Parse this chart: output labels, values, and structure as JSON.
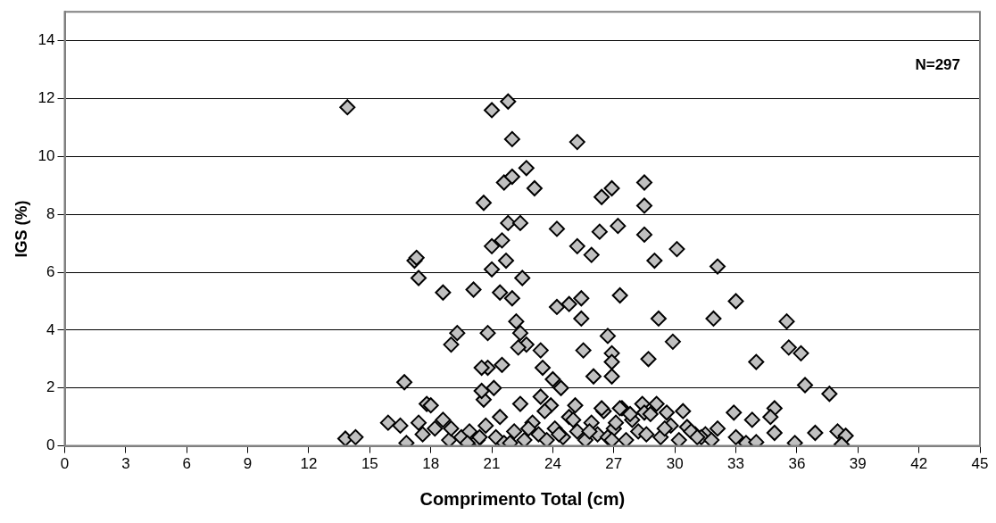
{
  "chart_data": {
    "type": "scatter",
    "xlabel": "Comprimento Total (cm)",
    "ylabel": "IGS (%)",
    "annotations": [
      "N=297"
    ],
    "marker": "diamond",
    "grid": "y",
    "xlim": [
      0,
      45
    ],
    "ylim": [
      0,
      15
    ],
    "xticks": [
      0,
      3,
      6,
      9,
      12,
      15,
      18,
      21,
      24,
      27,
      30,
      33,
      36,
      39,
      42,
      45
    ],
    "yticks": [
      0,
      2,
      4,
      6,
      8,
      10,
      12,
      14
    ],
    "series": [
      {
        "color": "#c0c0c0",
        "x": [
          13.9,
          21.0,
          21.8,
          22.0,
          25.2,
          20.6,
          21.6,
          22.0,
          22.7,
          23.1,
          26.4,
          26.9,
          28.5,
          28.5,
          17.2,
          17.4,
          18.6,
          20.1,
          21.0,
          21.4,
          22.0,
          22.5,
          21.7,
          21.0,
          21.5,
          21.8,
          22.4,
          24.2,
          25.2,
          25.9,
          26.3,
          27.2,
          28.5,
          29.0,
          30.1,
          24.2,
          24.8,
          25.4,
          25.4,
          27.3,
          29.2,
          19.3,
          19.0,
          20.8,
          22.2,
          22.4,
          22.7,
          22.3,
          23.4,
          25.5,
          26.7,
          26.9,
          26.9,
          28.7,
          29.9,
          20.8,
          21.5,
          23.5,
          32.1,
          33.0,
          31.9,
          35.5,
          35.6,
          36.2,
          34.0,
          17.3,
          16.7,
          15.9,
          16.5,
          13.8,
          14.3,
          17.8,
          17.4,
          18.0,
          18.6,
          20.5,
          21.1,
          20.6,
          20.5,
          22.4,
          24.0,
          24.4,
          23.9,
          23.4,
          25.1,
          26.0,
          26.9,
          36.4,
          37.6,
          32.9,
          34.9,
          36.9,
          35.9,
          33.8,
          34.7,
          34.9,
          32.1,
          33.0,
          33.5,
          34.0,
          31.5,
          31.0,
          30.6,
          29.6,
          29.1,
          28.4,
          28.5,
          27.4,
          38.0,
          38.4,
          38.2,
          16.8,
          17.6,
          18.2,
          18.9,
          19.5,
          19.9,
          20.3,
          20.7,
          21.2,
          21.6,
          22.1,
          22.6,
          23.0,
          23.3,
          23.7,
          24.1,
          24.5,
          24.8,
          25.2,
          25.6,
          25.9,
          26.2,
          26.5,
          26.7,
          27.0,
          27.3,
          27.6,
          27.9,
          28.2,
          28.8,
          29.3,
          29.8,
          30.2,
          30.8,
          31.3,
          31.8,
          19.0,
          19.8,
          20.4,
          21.4,
          21.9,
          22.8,
          23.6,
          24.3,
          25.0,
          25.8,
          26.4,
          26.9,
          27.1,
          27.8,
          28.6,
          29.5,
          30.4,
          31.1
        ],
        "values": [
          11.7,
          11.6,
          11.9,
          10.6,
          10.5,
          8.4,
          9.1,
          9.3,
          9.6,
          8.9,
          8.6,
          8.9,
          9.1,
          8.3,
          6.4,
          5.8,
          5.3,
          5.4,
          6.1,
          5.3,
          5.1,
          5.8,
          6.4,
          6.9,
          7.1,
          7.7,
          7.7,
          7.5,
          6.9,
          6.6,
          7.4,
          7.6,
          7.3,
          6.4,
          6.8,
          4.8,
          4.9,
          5.1,
          4.4,
          5.2,
          4.4,
          3.9,
          3.5,
          3.9,
          4.3,
          3.9,
          3.5,
          3.4,
          3.3,
          3.3,
          3.8,
          3.2,
          2.9,
          3.0,
          3.6,
          2.7,
          2.8,
          2.7,
          6.2,
          5.0,
          4.4,
          4.3,
          3.4,
          3.2,
          2.9,
          6.5,
          2.2,
          0.8,
          0.7,
          0.25,
          0.3,
          1.45,
          0.8,
          1.4,
          0.9,
          2.7,
          2.0,
          1.6,
          1.9,
          1.45,
          2.3,
          2.0,
          1.4,
          1.7,
          1.4,
          2.4,
          2.4,
          2.1,
          1.8,
          1.15,
          1.3,
          0.45,
          0.1,
          0.9,
          1.0,
          0.45,
          0.6,
          0.3,
          0.1,
          0.13,
          0.4,
          0.4,
          0.65,
          1.15,
          1.45,
          1.45,
          1.15,
          1.3,
          0.5,
          0.35,
          0.05,
          0.1,
          0.4,
          0.6,
          0.2,
          0.3,
          0.5,
          0.2,
          0.7,
          0.3,
          0.1,
          0.5,
          0.2,
          0.8,
          0.4,
          0.2,
          0.6,
          0.3,
          1.0,
          0.5,
          0.2,
          0.8,
          0.4,
          1.2,
          0.3,
          0.6,
          1.3,
          0.2,
          0.9,
          0.5,
          1.1,
          0.3,
          0.7,
          0.2,
          0.5,
          0.3,
          0.2,
          0.6,
          0.1,
          0.3,
          1.0,
          0.1,
          0.6,
          1.2,
          0.4,
          0.9,
          0.5,
          1.3,
          0.2,
          0.8,
          1.1,
          0.4,
          0.6,
          1.2,
          0.3
        ]
      }
    ]
  }
}
